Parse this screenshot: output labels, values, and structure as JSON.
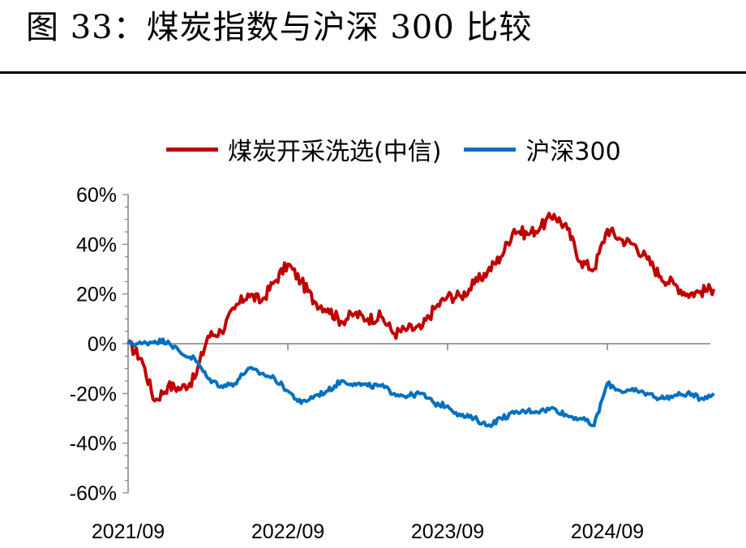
{
  "title": "图 33：煤炭指数与沪深 300 比较",
  "chart_data": {
    "type": "line",
    "title": "",
    "xlabel": "",
    "ylabel": "",
    "x_ticks": [
      "2021/09",
      "2022/09",
      "2023/09",
      "2024/09"
    ],
    "y_ticks": [
      "60%",
      "40%",
      "20%",
      "0%",
      "-20%",
      "-40%",
      "-60%"
    ],
    "ylim": [
      -60,
      60
    ],
    "y_unit": "%",
    "x_range": [
      "2021/09",
      "2025/05"
    ],
    "legend_position": "top",
    "series": [
      {
        "name": "煤炭开采洗选(中信)",
        "color": "#C00000",
        "points": [
          [
            "2021/09",
            0
          ],
          [
            "2021/10",
            -6
          ],
          [
            "2021/11",
            -23
          ],
          [
            "2021/12",
            -17
          ],
          [
            "2022/01",
            -18
          ],
          [
            "2022/02",
            -14
          ],
          [
            "2022/03",
            3
          ],
          [
            "2022/04",
            5
          ],
          [
            "2022/05",
            14
          ],
          [
            "2022/06",
            20
          ],
          [
            "2022/07",
            17
          ],
          [
            "2022/08",
            25
          ],
          [
            "2022/09",
            32
          ],
          [
            "2022/10",
            25
          ],
          [
            "2022/11",
            17
          ],
          [
            "2022/12",
            14
          ],
          [
            "2023/01",
            9
          ],
          [
            "2023/02",
            12
          ],
          [
            "2023/03",
            10
          ],
          [
            "2023/04",
            11
          ],
          [
            "2023/05",
            4
          ],
          [
            "2023/06",
            6
          ],
          [
            "2023/07",
            6
          ],
          [
            "2023/08",
            14
          ],
          [
            "2023/09",
            19
          ],
          [
            "2023/10",
            19
          ],
          [
            "2023/11",
            24
          ],
          [
            "2023/12",
            29
          ],
          [
            "2024/01",
            35
          ],
          [
            "2024/02",
            46
          ],
          [
            "2024/03",
            44
          ],
          [
            "2024/04",
            47
          ],
          [
            "2024/05",
            52
          ],
          [
            "2024/06",
            46
          ],
          [
            "2024/07",
            33
          ],
          [
            "2024/08",
            30
          ],
          [
            "2024/09",
            46
          ],
          [
            "2024/10",
            42
          ],
          [
            "2024/11",
            40
          ],
          [
            "2024/12",
            34
          ],
          [
            "2025/01",
            27
          ],
          [
            "2025/02",
            24
          ],
          [
            "2025/03",
            20
          ],
          [
            "2025/04",
            21
          ],
          [
            "2025/05",
            22
          ]
        ]
      },
      {
        "name": "沪深300",
        "color": "#0070C0",
        "points": [
          [
            "2021/09",
            0
          ],
          [
            "2021/10",
            0
          ],
          [
            "2021/11",
            1
          ],
          [
            "2021/12",
            1
          ],
          [
            "2022/01",
            -4
          ],
          [
            "2022/02",
            -6
          ],
          [
            "2022/03",
            -14
          ],
          [
            "2022/04",
            -17
          ],
          [
            "2022/05",
            -16
          ],
          [
            "2022/06",
            -10
          ],
          [
            "2022/07",
            -12
          ],
          [
            "2022/08",
            -14
          ],
          [
            "2022/09",
            -19
          ],
          [
            "2022/10",
            -24
          ],
          [
            "2022/11",
            -21
          ],
          [
            "2022/12",
            -19
          ],
          [
            "2023/01",
            -15
          ],
          [
            "2023/02",
            -16
          ],
          [
            "2023/03",
            -17
          ],
          [
            "2023/04",
            -17
          ],
          [
            "2023/05",
            -20
          ],
          [
            "2023/06",
            -21
          ],
          [
            "2023/07",
            -20
          ],
          [
            "2023/08",
            -24
          ],
          [
            "2023/09",
            -25
          ],
          [
            "2023/10",
            -29
          ],
          [
            "2023/11",
            -30
          ],
          [
            "2023/12",
            -33
          ],
          [
            "2024/01",
            -30
          ],
          [
            "2024/02",
            -28
          ],
          [
            "2024/03",
            -27
          ],
          [
            "2024/04",
            -27
          ],
          [
            "2024/05",
            -26
          ],
          [
            "2024/06",
            -29
          ],
          [
            "2024/07",
            -30
          ],
          [
            "2024/08",
            -33
          ],
          [
            "2024/09",
            -16
          ],
          [
            "2024/10",
            -19
          ],
          [
            "2024/11",
            -19
          ],
          [
            "2024/12",
            -20
          ],
          [
            "2025/01",
            -22
          ],
          [
            "2025/02",
            -21
          ],
          [
            "2025/03",
            -20
          ],
          [
            "2025/04",
            -22
          ],
          [
            "2025/05",
            -20
          ]
        ]
      }
    ]
  }
}
